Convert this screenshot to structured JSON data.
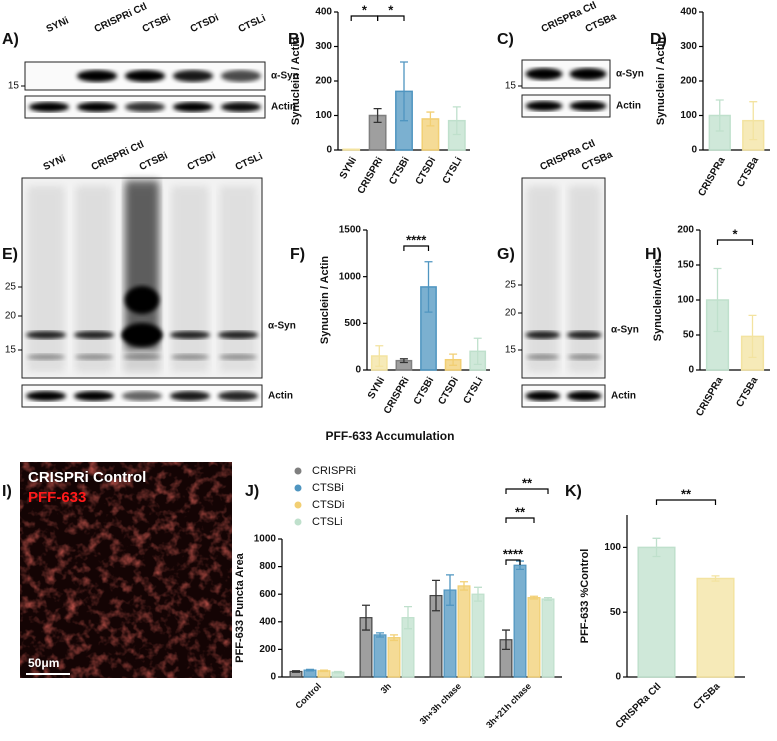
{
  "chart_data": [
    {
      "type": "bar",
      "label": "B)",
      "y_label": "Synuclein / Actin",
      "categories": [
        "SYNi",
        "CRISPRi",
        "CTSBi",
        "CTSDi",
        "CTSLi"
      ],
      "values": [
        2,
        100,
        170,
        90,
        85
      ],
      "errors": [
        0,
        20,
        85,
        20,
        40
      ],
      "colors": [
        "#f3e3a0",
        "#7f7f7f",
        "#4f95c0",
        "#f2cf73",
        "#bfe0cc"
      ],
      "ylim": [
        0,
        400
      ],
      "yticks": [
        0,
        100,
        200,
        300,
        400
      ],
      "annotations": [
        "*",
        "*"
      ]
    },
    {
      "type": "bar",
      "label": "D)",
      "y_label": "Synuclein / Actin",
      "categories": [
        "CRISPRa",
        "CTSBa"
      ],
      "values": [
        100,
        85
      ],
      "errors": [
        45,
        55
      ],
      "colors": [
        "#bfe0cc",
        "#f3e3a0"
      ],
      "ylim": [
        0,
        400
      ],
      "yticks": [
        0,
        100,
        200,
        300,
        400
      ],
      "annotations": []
    },
    {
      "type": "bar",
      "label": "F)",
      "y_label": "Synuclein / Actin",
      "categories": [
        "SYNi",
        "CRISPRi",
        "CTSBi",
        "CTSDi",
        "CTSLi"
      ],
      "values": [
        150,
        100,
        890,
        110,
        200
      ],
      "errors": [
        110,
        20,
        270,
        60,
        140
      ],
      "colors": [
        "#f3e3a0",
        "#7f7f7f",
        "#4f95c0",
        "#f2cf73",
        "#bfe0cc"
      ],
      "ylim": [
        0,
        1500
      ],
      "yticks": [
        0,
        500,
        1000,
        1500
      ],
      "annotations": [
        "****"
      ]
    },
    {
      "type": "bar",
      "label": "H)",
      "y_label": "Synuclein/Actin",
      "categories": [
        "CRISPRa",
        "CTSBa"
      ],
      "values": [
        100,
        48
      ],
      "errors": [
        45,
        30
      ],
      "colors": [
        "#bfe0cc",
        "#f3e3a0"
      ],
      "ylim": [
        0,
        200
      ],
      "yticks": [
        0,
        50,
        100,
        150,
        200
      ],
      "annotations": [
        "*"
      ]
    },
    {
      "type": "grouped_bar",
      "label": "J)",
      "title": "PFF-633 Accumulation",
      "y_label": "PFF-633 Puncta Area",
      "categories": [
        "Control",
        "3h",
        "3h+3h chase",
        "3h+21h chase"
      ],
      "series": [
        {
          "name": "CRISPRi",
          "color": "#7f7f7f",
          "values": [
            40,
            430,
            590,
            270
          ],
          "errors": [
            5,
            90,
            110,
            70
          ]
        },
        {
          "name": "CTSBi",
          "color": "#4f95c0",
          "values": [
            50,
            305,
            630,
            810
          ],
          "errors": [
            5,
            15,
            110,
            30
          ]
        },
        {
          "name": "CTSDi",
          "color": "#f2cf73",
          "values": [
            45,
            285,
            660,
            575
          ],
          "errors": [
            5,
            20,
            30,
            10
          ]
        },
        {
          "name": "CTSLi",
          "color": "#bfe0cc",
          "values": [
            35,
            430,
            600,
            565
          ],
          "errors": [
            5,
            80,
            50,
            10
          ]
        }
      ],
      "ylim": [
        0,
        1000
      ],
      "yticks": [
        0,
        200,
        400,
        600,
        800,
        1000
      ],
      "annotations": [
        "****",
        "**",
        "**"
      ]
    },
    {
      "type": "bar",
      "label": "K)",
      "y_label": "PFF-633 %Control",
      "categories": [
        "CRISPRa Ctl",
        "CTSBa"
      ],
      "values": [
        100,
        76
      ],
      "errors": [
        7,
        2
      ],
      "colors": [
        "#bfe0cc",
        "#f3e3a0"
      ],
      "ylim": [
        0,
        125
      ],
      "yticks": [
        0,
        50,
        100
      ],
      "annotations": [
        "**"
      ]
    }
  ],
  "blots": [
    {
      "label": "A)",
      "lanes": [
        "SYNi",
        "CRISPRi Ctl",
        "CTSBi",
        "CTSDi",
        "CTSLi"
      ],
      "markers": [
        15
      ],
      "bands": [
        "α-Syn",
        "Actin"
      ]
    },
    {
      "label": "C)",
      "lanes": [
        "CRISPRa Ctl",
        "CTSBa"
      ],
      "markers": [
        15
      ],
      "bands": [
        "α-Syn",
        "Actin"
      ]
    },
    {
      "label": "E)",
      "lanes": [
        "SYNi",
        "CRISPRi Ctl",
        "CTSBi",
        "CTSDi",
        "CTSLi"
      ],
      "markers": [
        25,
        20,
        15
      ],
      "bands": [
        "α-Syn",
        "Actin"
      ]
    },
    {
      "label": "G)",
      "lanes": [
        "CRISPRa Ctl",
        "CTSBa"
      ],
      "markers": [
        25,
        20,
        15
      ],
      "bands": [
        "α-Syn",
        "Actin"
      ]
    }
  ],
  "image": {
    "label": "I)",
    "texts": [
      "CRISPRi Control",
      "PFF-633"
    ],
    "scale_bar": "50μm"
  }
}
